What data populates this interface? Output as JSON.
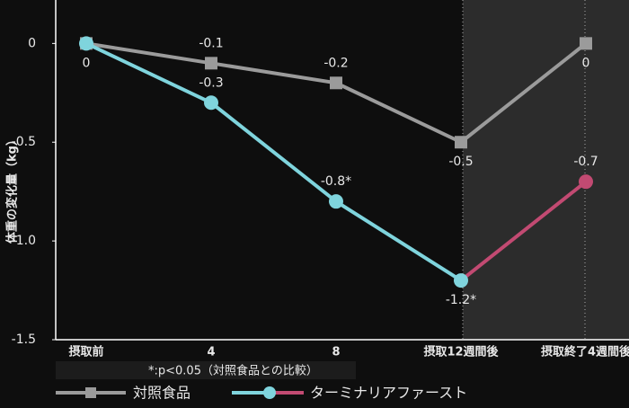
{
  "chart_data": {
    "type": "line",
    "y_label": "体重の変化量（kg）",
    "categories": [
      "摂取前",
      "4",
      "8",
      "摂取12週間後",
      "摂取終了4週間後"
    ],
    "series": [
      {
        "name": "対照食品",
        "color": "#9b9b9b",
        "marker": "square",
        "values": [
          0,
          -0.1,
          -0.2,
          -0.5,
          0
        ],
        "value_labels": [
          "0",
          "-0.1",
          "-0.2",
          "-0.5",
          "0"
        ]
      },
      {
        "name": "ターミナリアファースト",
        "color": "#7fd4dd",
        "after_color": "#c24a72",
        "marker": "circle",
        "values": [
          0,
          -0.3,
          -0.8,
          -1.2,
          -0.7
        ],
        "value_labels": [
          null,
          "-0.3",
          "-0.8*",
          "-1.2*",
          "-0.7"
        ]
      }
    ],
    "ylim": [
      -1.5,
      0.22
    ],
    "yticks": [
      0,
      -0.5,
      {
        "value": -1,
        "label": "-1.0"
      },
      -1.5
    ],
    "footnote": "*:p<0.05（対照食品との比較）"
  }
}
